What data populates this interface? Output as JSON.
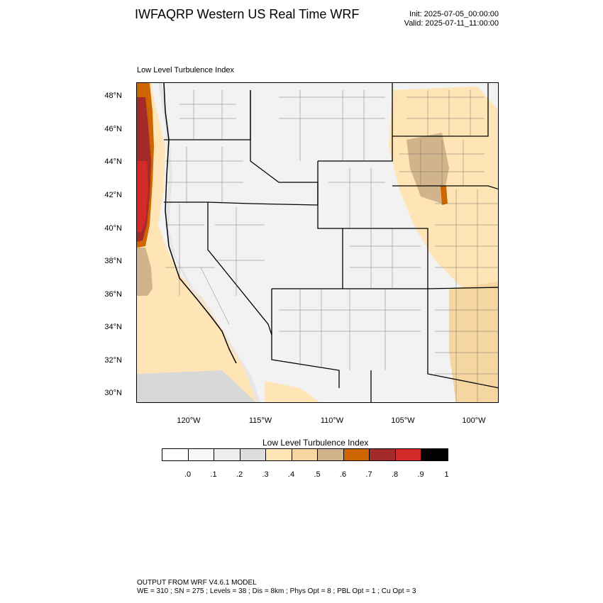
{
  "header": {
    "title": "IWFAQRP Western US Real Time WRF",
    "init": "Init: 2025-07-05_00:00:00",
    "valid": "Valid: 2025-07-11_11:00:00"
  },
  "panel": {
    "title": "Low Level Turbulence Index"
  },
  "map": {
    "region": "Western United States",
    "lat_labels": [
      "48°N",
      "46°N",
      "44°N",
      "42°N",
      "40°N",
      "38°N",
      "36°N",
      "34°N",
      "32°N",
      "30°N"
    ],
    "lon_labels": [
      "120°W",
      "115°W",
      "110°W",
      "105°W",
      "100°W"
    ],
    "colors": {
      "water": "#d8d8d8",
      "land_low": "#f2f2f2",
      "state_line": "#000000",
      "county_line": "#444444"
    }
  },
  "colorbar": {
    "title": "Low Level Turbulence Index",
    "labels": [
      ".0",
      ".1",
      ".2",
      ".3",
      ".4",
      ".5",
      ".6",
      ".7",
      ".8",
      ".9",
      "1"
    ],
    "colors": [
      "#ffffff",
      "#f7f7f7",
      "#eeeeee",
      "#dddddd",
      "#ffe4b5",
      "#f5d6a0",
      "#d2b48c",
      "#cd6600",
      "#a52a2a",
      "#d42a2a",
      "#000000"
    ]
  },
  "footer": {
    "line1": "OUTPUT FROM WRF V4.6.1 MODEL",
    "line2": "WE = 310 ; SN = 275 ; Levels = 38 ; Dis = 8km ; Phys Opt = 8 ; PBL Opt = 1 ; Cu Opt = 3"
  }
}
